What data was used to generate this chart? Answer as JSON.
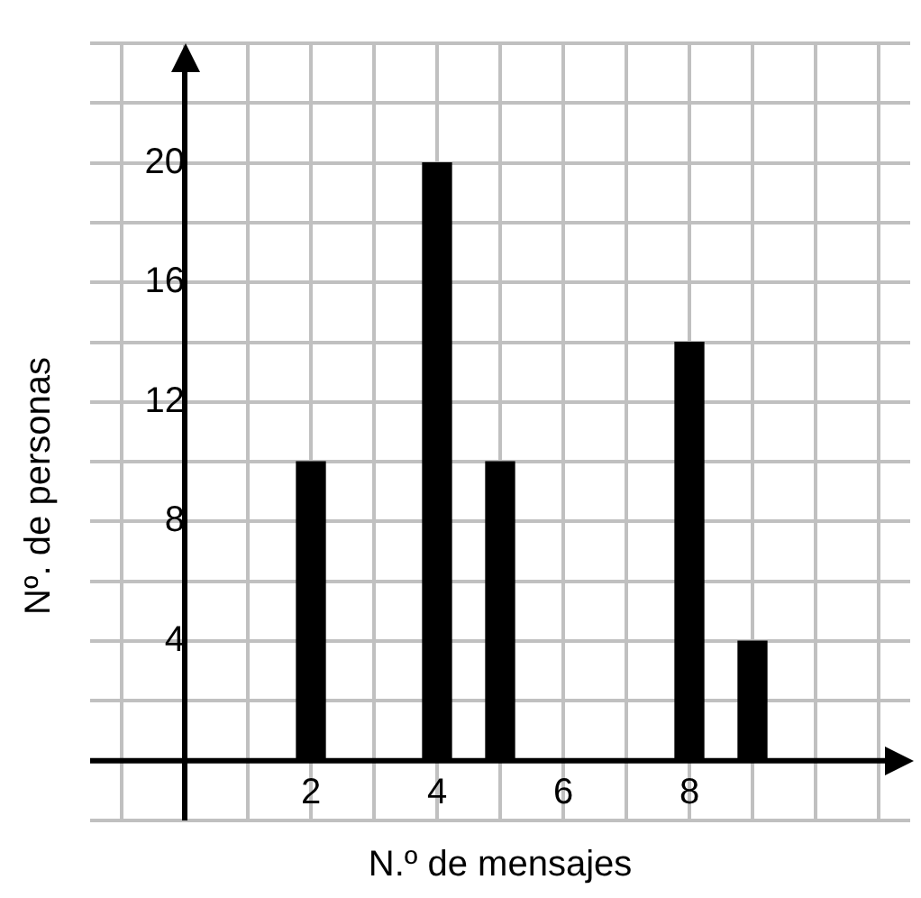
{
  "chart_data": {
    "type": "bar",
    "xlabel": "N.º de mensajes",
    "ylabel": "Nº. de personas",
    "x": [
      2,
      4,
      5,
      8,
      9
    ],
    "values": [
      10,
      20,
      10,
      14,
      4
    ],
    "color": "#000000",
    "xlim": [
      -1,
      11
    ],
    "xticks": [
      {
        "value": -1,
        "label": null
      },
      {
        "value": 0,
        "label": null
      },
      {
        "value": 1,
        "label": null
      },
      2,
      {
        "value": 3,
        "label": null
      },
      4,
      {
        "value": 5,
        "label": null
      },
      6,
      {
        "value": 7,
        "label": null
      },
      8,
      {
        "value": 9,
        "label": null
      },
      {
        "value": 10,
        "label": null
      },
      {
        "value": 11,
        "label": null
      }
    ],
    "ylim": [
      -2,
      24
    ],
    "yticks": [
      {
        "value": -2,
        "label": null
      },
      {
        "value": 0,
        "label": null
      },
      {
        "value": 2,
        "label": null
      },
      4,
      {
        "value": 6,
        "label": null
      },
      8,
      {
        "value": 10,
        "label": null
      },
      12,
      {
        "value": 14,
        "label": null
      },
      16,
      {
        "value": 18,
        "label": null
      },
      20,
      {
        "value": 22,
        "label": null
      },
      {
        "value": 24,
        "label": null
      }
    ],
    "grid": true
  }
}
